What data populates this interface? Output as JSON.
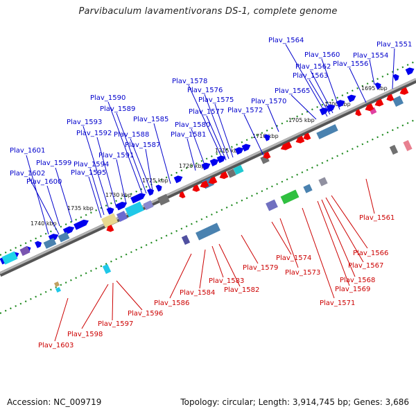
{
  "title": "Parvibaculum lavamentivorans DS-1, complete genome",
  "footer": {
    "accession": "Accession: NC_009719",
    "topology": "Topology: circular; Length: 3,914,745 bp; Genes: 3,686"
  },
  "colors": {
    "forward_gene": "#0000ee",
    "reverse_gene": "#ee0000",
    "forward_label": "#0000cc",
    "reverse_label": "#cc0000",
    "backbone": "#8c8c8c",
    "ticks": "#1f8a1f"
  },
  "scale_marks": [
    "1740 kbp",
    "1735 kbp",
    "1730 kbp",
    "1725 kbp",
    "1720 kbp",
    "1715 kbp",
    "1710 kbp",
    "1705 kbp",
    "1700 kbp",
    "1695 kbp"
  ],
  "forward_labels": [
    "Plav_1601",
    "Plav_1602",
    "Plav_1599",
    "Plav_1600",
    "Plav_1593",
    "Plav_1592",
    "Plav_1594",
    "Plav_1595",
    "Plav_1591",
    "Plav_1590",
    "Plav_1589",
    "Plav_1588",
    "Plav_1587",
    "Plav_1585",
    "Plav_1578",
    "Plav_1576",
    "Plav_1575",
    "Plav_1577",
    "Plav_1580",
    "Plav_1581",
    "Plav_1572",
    "Plav_1570",
    "Plav_1565",
    "Plav_1564",
    "Plav_1562",
    "Plav_1563",
    "Plav_1560",
    "Plav_1556",
    "Plav_1554",
    "Plav_1551"
  ],
  "reverse_labels": [
    "Plav_1603",
    "Plav_1598",
    "Plav_1597",
    "Plav_1596",
    "Plav_1586",
    "Plav_1584",
    "Plav_1583",
    "Plav_1582",
    "Plav_1579",
    "Plav_1574",
    "Plav_1573",
    "Plav_1571",
    "Plav_1569",
    "Plav_1568",
    "Plav_1567",
    "Plav_1566",
    "Plav_1561"
  ]
}
